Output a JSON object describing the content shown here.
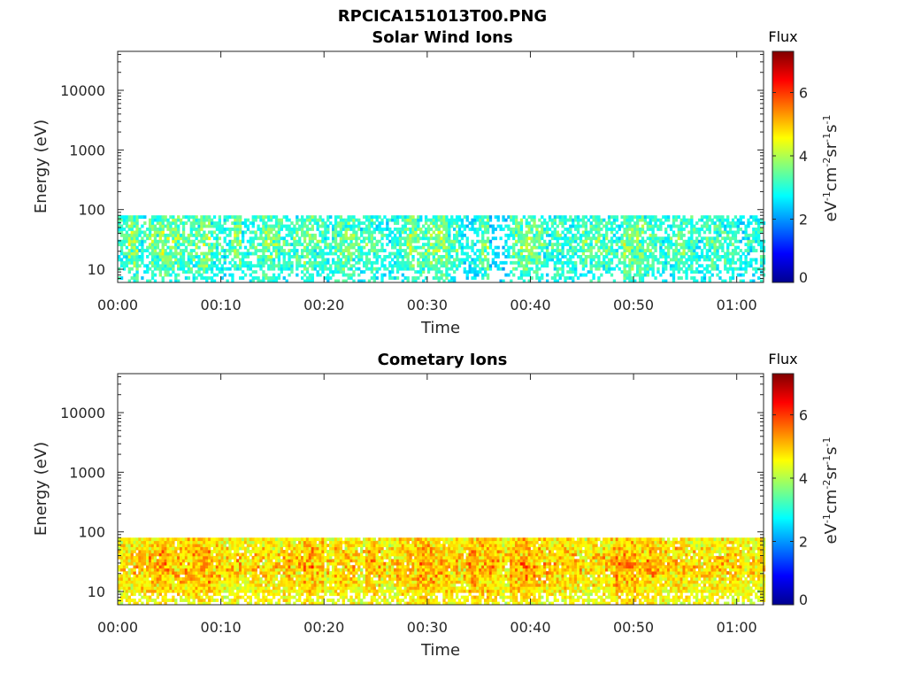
{
  "figure": {
    "title": "RPCICA151013T00.PNG"
  },
  "chart_data": [
    {
      "type": "heatmap",
      "title": "Solar Wind Ions",
      "xlabel": "Time",
      "ylabel": "Energy (eV)",
      "x_tick_labels": [
        "00:00",
        "00:10",
        "00:20",
        "00:30",
        "00:40",
        "00:50",
        "01:00"
      ],
      "x_ticks_minutes": [
        0,
        10,
        20,
        30,
        40,
        50,
        60
      ],
      "xlim_minutes": [
        0,
        62.6
      ],
      "y_scale": "log",
      "ylim": [
        6,
        45000
      ],
      "y_tick_values": [
        10,
        100,
        1000,
        10000
      ],
      "y_tick_labels": [
        "10",
        "100",
        "1000",
        "10000"
      ],
      "colorbar": {
        "title": "Flux",
        "label": "eV-1cm-2sr-1s-1",
        "range": [
          0,
          7.3
        ],
        "tick_values": [
          0,
          2,
          4,
          6
        ],
        "tick_labels": [
          "0",
          "2",
          "4",
          "6"
        ],
        "colormap": "jet"
      },
      "data_energy_range_eV": [
        6,
        80
      ],
      "typical_value": 3.0,
      "peak_value": 4.8,
      "activity_by_minute": [
        0.6,
        0.9,
        0.55,
        0.8,
        0.95,
        0.85,
        0.7,
        0.75,
        0.9,
        0.6,
        0.5,
        0.8,
        0.45,
        0.65,
        0.9,
        0.75,
        0.6,
        0.7,
        0.9,
        0.65,
        0.55,
        0.85,
        0.8,
        0.6,
        0.7,
        0.55,
        0.5,
        0.6,
        0.9,
        0.8,
        0.85,
        0.95,
        0.7,
        0.5,
        0.35,
        0.85,
        0.2,
        0.3,
        0.75,
        0.9,
        0.85,
        0.6,
        0.7,
        0.55,
        0.5,
        0.75,
        0.8,
        0.7,
        0.6,
        0.95,
        0.85,
        0.7,
        0.6,
        0.55,
        0.75,
        0.65,
        0.5,
        0.7,
        0.6,
        0.65,
        0.55,
        0.5,
        0.6
      ]
    },
    {
      "type": "heatmap",
      "title": "Cometary Ions",
      "xlabel": "Time",
      "ylabel": "Energy (eV)",
      "x_tick_labels": [
        "00:00",
        "00:10",
        "00:20",
        "00:30",
        "00:40",
        "00:50",
        "01:00"
      ],
      "x_ticks_minutes": [
        0,
        10,
        20,
        30,
        40,
        50,
        60
      ],
      "xlim_minutes": [
        0,
        62.6
      ],
      "y_scale": "log",
      "ylim": [
        6,
        45000
      ],
      "y_tick_values": [
        10,
        100,
        1000,
        10000
      ],
      "y_tick_labels": [
        "10",
        "100",
        "1000",
        "10000"
      ],
      "colorbar": {
        "title": "Flux",
        "label": "eV-1cm-2sr-1s-1",
        "range": [
          0,
          7.3
        ],
        "tick_values": [
          0,
          2,
          4,
          6
        ],
        "tick_labels": [
          "0",
          "2",
          "4",
          "6"
        ],
        "colormap": "jet"
      },
      "data_energy_range_eV": [
        6,
        80
      ],
      "typical_value": 4.6,
      "peak_value": 6.2,
      "activity_by_minute": [
        0.7,
        0.75,
        0.8,
        0.85,
        0.95,
        0.8,
        0.85,
        0.9,
        0.95,
        0.8,
        0.7,
        0.75,
        0.7,
        0.8,
        0.75,
        0.7,
        0.8,
        0.75,
        0.95,
        0.85,
        0.7,
        0.8,
        0.75,
        0.7,
        0.85,
        0.75,
        0.7,
        0.8,
        0.85,
        0.95,
        0.9,
        0.85,
        0.8,
        0.75,
        0.95,
        0.9,
        0.85,
        0.7,
        0.9,
        0.95,
        0.85,
        0.8,
        0.75,
        0.8,
        0.75,
        0.7,
        0.75,
        0.8,
        0.9,
        0.95,
        0.85,
        0.9,
        0.8,
        0.75,
        0.8,
        0.75,
        0.7,
        0.75,
        0.8,
        0.75,
        0.7,
        0.7,
        0.75
      ]
    }
  ]
}
